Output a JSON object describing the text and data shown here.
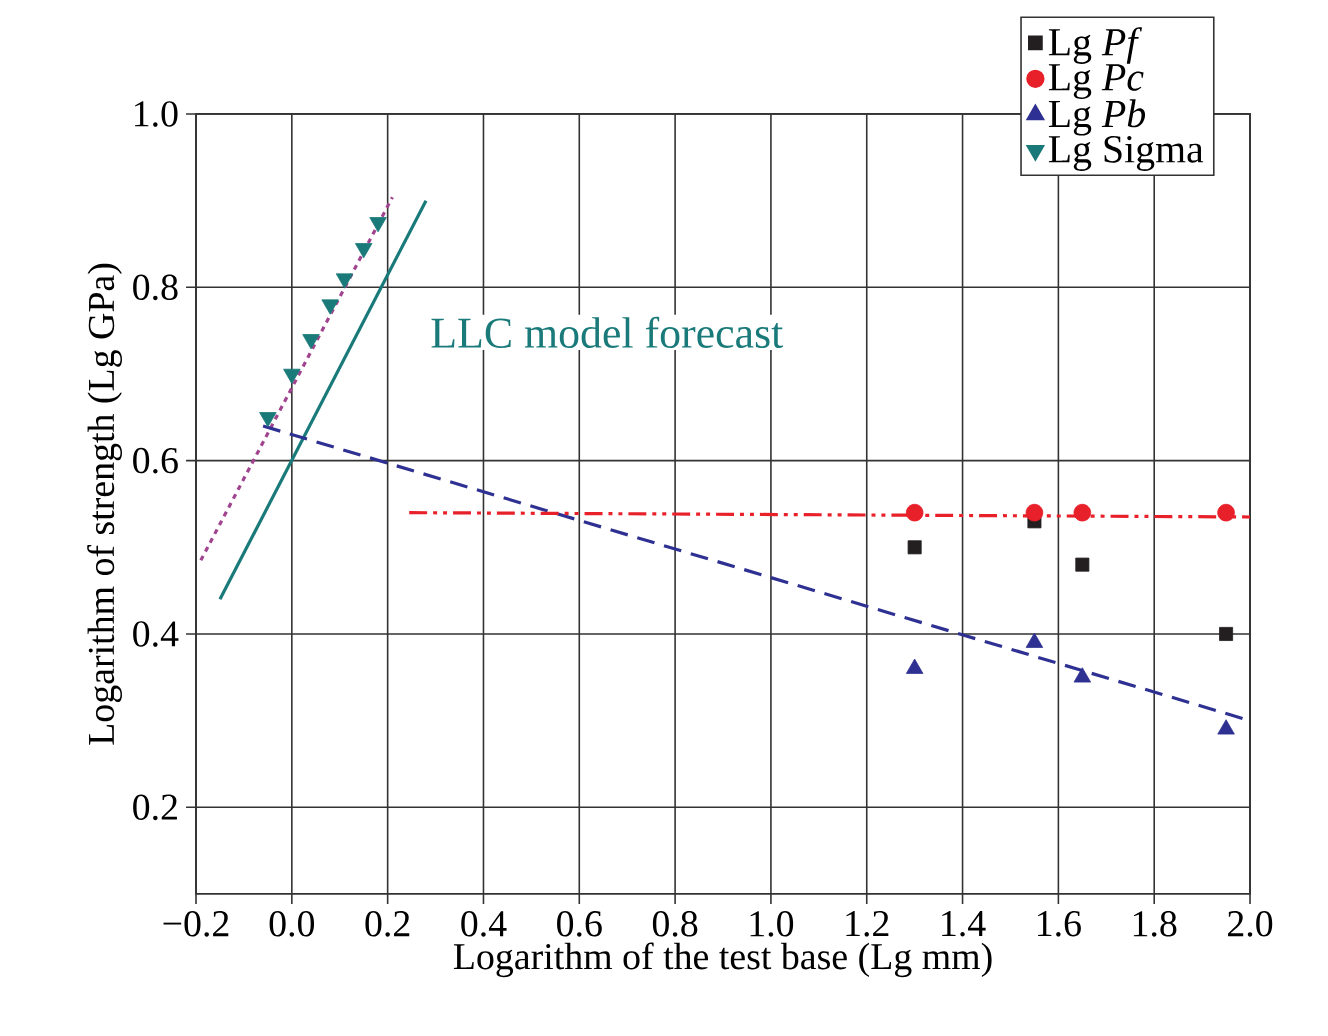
{
  "chart_data": {
    "type": "scatter",
    "xlabel": "Logarithm of the test base (Lg mm)",
    "ylabel": "Logarithm of strength (Lg GPa)",
    "xlim": [
      -0.2,
      2.0
    ],
    "ylim": [
      0.1,
      1.0
    ],
    "xticks": [
      {
        "value": -0.2,
        "label": "−0.2"
      },
      {
        "value": 0,
        "label": "0.0"
      },
      {
        "value": 0.2,
        "label": "0.2"
      },
      {
        "value": 0.4,
        "label": "0.4"
      },
      {
        "value": 0.6,
        "label": "0.6"
      },
      {
        "value": 0.8,
        "label": "0.8"
      },
      {
        "value": 1,
        "label": "1.0"
      },
      {
        "value": 1.2,
        "label": "1.2"
      },
      {
        "value": 1.4,
        "label": "1.4"
      },
      {
        "value": 1.6,
        "label": "1.6"
      },
      {
        "value": 1.8,
        "label": "1.8"
      },
      {
        "value": 2,
        "label": "2.0"
      }
    ],
    "yticks": [
      {
        "value": 0.2,
        "label": "0.2"
      },
      {
        "value": 0.4,
        "label": "0.4"
      },
      {
        "value": 0.6,
        "label": "0.6"
      },
      {
        "value": 0.8,
        "label": "0.8"
      },
      {
        "value": 1,
        "label": "1.0"
      }
    ],
    "grid": true,
    "legend": "top right",
    "series": [
      {
        "type": "line",
        "color": "#a0448f",
        "marker": "none",
        "line_style": "dotted",
        "x": [
          -0.19,
          0.21
        ],
        "values": [
          0.485,
          0.904
        ]
      },
      {
        "type": "line",
        "color": "#1a7a7a",
        "marker": "none",
        "line_style": "solid",
        "x": [
          -0.15,
          0.28
        ],
        "values": [
          0.44,
          0.9
        ]
      },
      {
        "type": "line",
        "color": "#2e3192",
        "marker": "none",
        "line_style": "dashed",
        "x": [
          -0.06,
          2.0
        ],
        "values": [
          0.64,
          0.3
        ]
      },
      {
        "type": "line",
        "color": "#e8202a",
        "marker": "none",
        "line_style": "dashdotdot",
        "x": [
          0.245,
          2.0
        ],
        "values": [
          0.54,
          0.535
        ]
      },
      {
        "name": "Lg *Pf*",
        "color": "#231f20",
        "marker": "square",
        "x": [
          1.3,
          1.55,
          1.65,
          1.95
        ],
        "values": [
          0.5,
          0.53,
          0.48,
          0.4
        ]
      },
      {
        "name": "Lg *Pc*",
        "color": "#e8202a",
        "marker": "circle",
        "x": [
          1.3,
          1.55,
          1.65,
          1.95
        ],
        "values": [
          0.54,
          0.54,
          0.54,
          0.54
        ]
      },
      {
        "name": "Lg *Pb*",
        "color": "#2e3192",
        "marker": "triangle",
        "x": [
          1.3,
          1.55,
          1.65,
          1.95
        ],
        "values": [
          0.36,
          0.39,
          0.35,
          0.29
        ]
      },
      {
        "name": "Lg Sigma",
        "color": "#1a7a7a",
        "marker": "triangle-down",
        "x": [
          -0.05,
          0.0,
          0.04,
          0.08,
          0.11,
          0.15,
          0.18
        ],
        "values": [
          0.65,
          0.7,
          0.74,
          0.78,
          0.81,
          0.845,
          0.875
        ]
      }
    ],
    "annotations": [
      "LLC model forecast"
    ]
  }
}
